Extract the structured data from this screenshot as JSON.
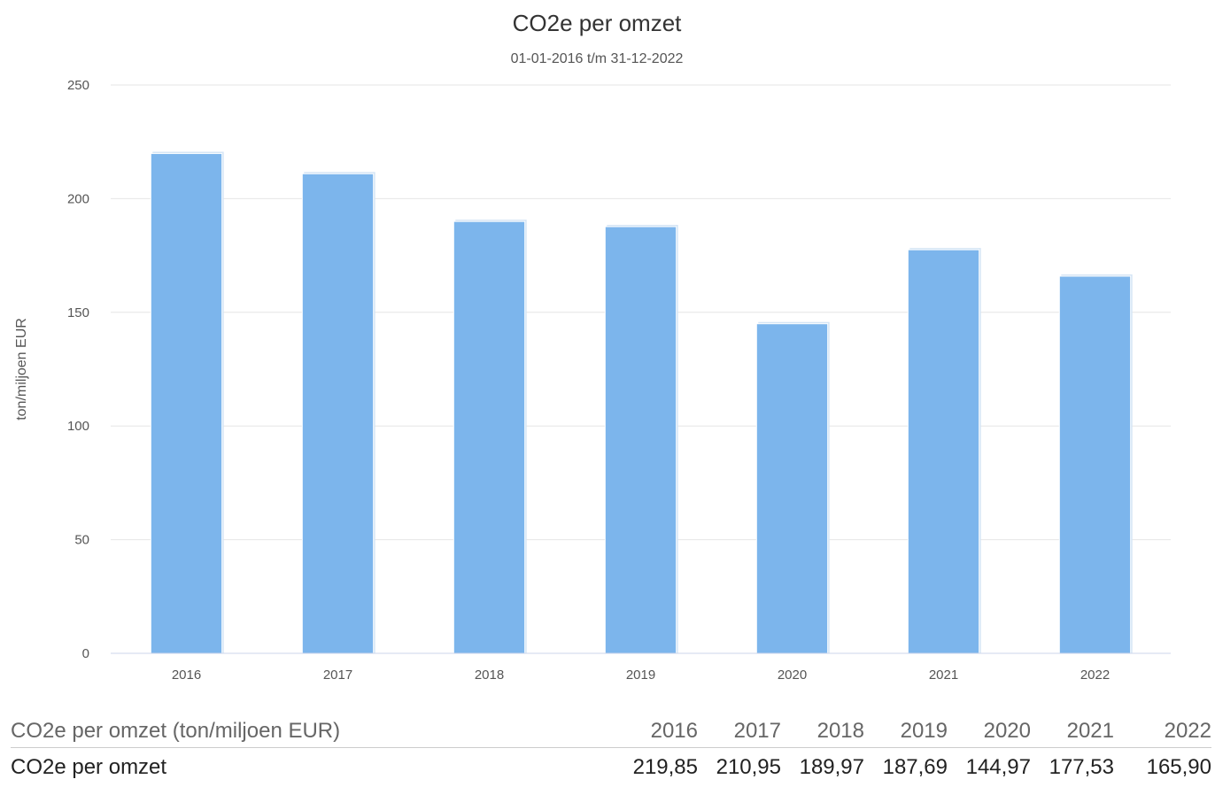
{
  "chart_data": {
    "type": "bar",
    "title": "CO2e per omzet",
    "subtitle": "01-01-2016 t/m 31-12-2022",
    "ylabel": "ton/miljoen EUR",
    "xlabel": "",
    "categories": [
      "2016",
      "2017",
      "2018",
      "2019",
      "2020",
      "2021",
      "2022"
    ],
    "series": [
      {
        "name": "CO2e per omzet",
        "values": [
          219.85,
          210.95,
          189.97,
          187.69,
          144.97,
          177.53,
          165.9
        ]
      }
    ],
    "ylim": [
      0,
      250
    ],
    "yticks": [
      0,
      50,
      100,
      150,
      200,
      250
    ],
    "grid": true,
    "bar_color": "#7cb5ec"
  },
  "table": {
    "header_label": "CO2e per omzet (ton/miljoen EUR)",
    "years": [
      "2016",
      "2017",
      "2018",
      "2019",
      "2020",
      "2021",
      "2022"
    ],
    "row_label": "CO2e per omzet",
    "row_values": [
      "219,85",
      "210,95",
      "189,97",
      "187,69",
      "144,97",
      "177,53",
      "165,90"
    ]
  }
}
